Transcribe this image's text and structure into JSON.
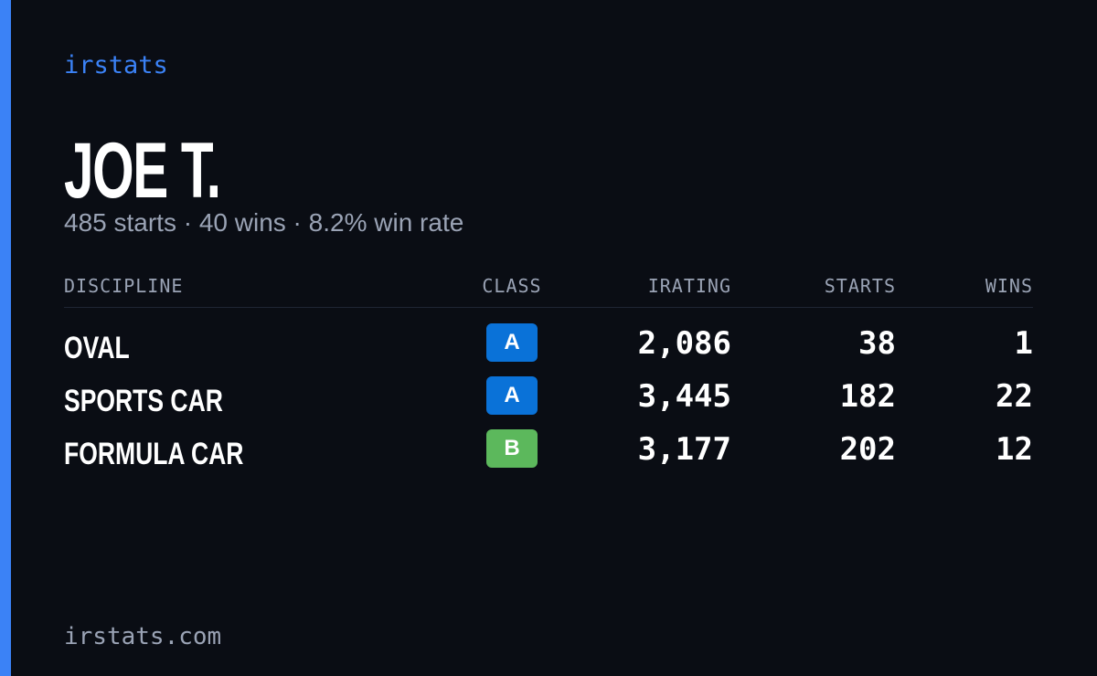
{
  "brand": "irstats",
  "driver": {
    "name": "JOE T.",
    "summary": "485 starts · 40 wins · 8.2% win rate"
  },
  "table": {
    "headers": [
      "DISCIPLINE",
      "CLASS",
      "IRATING",
      "STARTS",
      "WINS"
    ],
    "rows": [
      {
        "discipline": "OVAL",
        "class": "A",
        "class_color": "#0a72d8",
        "irating": "2,086",
        "starts": "38",
        "wins": "1"
      },
      {
        "discipline": "SPORTS CAR",
        "class": "A",
        "class_color": "#0a72d8",
        "irating": "3,445",
        "starts": "182",
        "wins": "22"
      },
      {
        "discipline": "FORMULA CAR",
        "class": "B",
        "class_color": "#5cb85c",
        "irating": "3,177",
        "starts": "202",
        "wins": "12"
      }
    ]
  },
  "footer": "irstats.com"
}
